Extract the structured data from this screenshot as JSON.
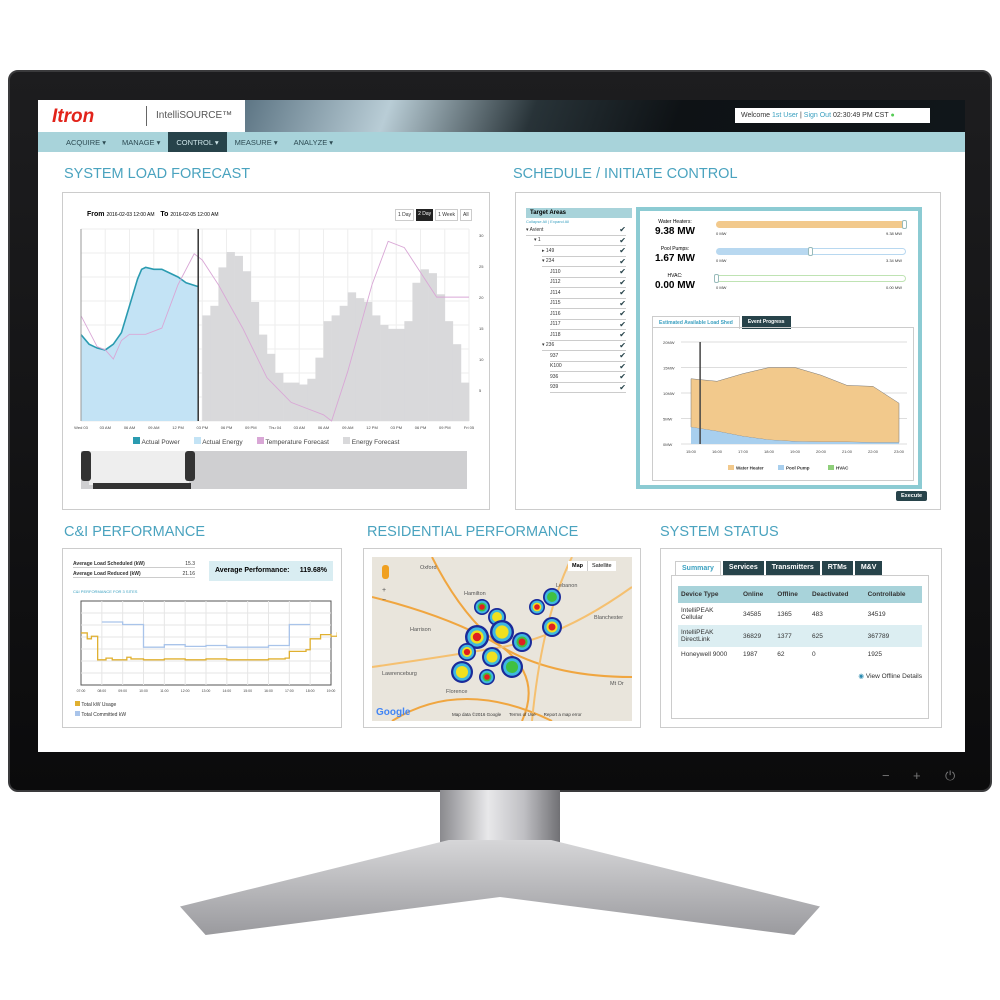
{
  "app": {
    "logo": "Itron",
    "product": "IntelliSOURCE™",
    "welcome": "Welcome",
    "user": "1st User",
    "sign_out": "Sign Out",
    "time": "02:30:49 PM CST",
    "status_dot": "●"
  },
  "nav": [
    {
      "label": "ACQUIRE ▾"
    },
    {
      "label": "MANAGE ▾"
    },
    {
      "label": "CONTROL ▾",
      "active": true
    },
    {
      "label": "MEASURE ▾"
    },
    {
      "label": "ANALYZE ▾"
    }
  ],
  "load_forecast": {
    "title": "SYSTEM LOAD FORECAST",
    "from_label": "From",
    "from": "2016-02-03 12:00 AM",
    "to_label": "To",
    "to": "2016-02-05 12:00 AM",
    "ranges": [
      "1 Day",
      "2 Day",
      "1 Week",
      "All"
    ],
    "active_range": "2 Day",
    "legend": [
      "Actual Power",
      "Actual Energy",
      "Temperature Forecast",
      "Energy Forecast"
    ],
    "colors": {
      "actual_power": "#2a9bb0",
      "actual_energy": "#c3e3f5",
      "temperature": "#d9a7d6",
      "energy_forecast": "#d9d9db"
    }
  },
  "schedule": {
    "title": "SCHEDULE / INITIATE CONTROL",
    "target_areas": "Target Areas",
    "collapse": "Collapse All | Expand All",
    "tree": [
      {
        "label": "▾ Avient",
        "lvl": 0
      },
      {
        "label": "▾ 1",
        "lvl": 1
      },
      {
        "label": "▸ 149",
        "lvl": 2
      },
      {
        "label": "▾ 234",
        "lvl": 2
      },
      {
        "label": "J110",
        "lvl": 3
      },
      {
        "label": "J112",
        "lvl": 3
      },
      {
        "label": "J114",
        "lvl": 3
      },
      {
        "label": "J115",
        "lvl": 3
      },
      {
        "label": "J116",
        "lvl": 3
      },
      {
        "label": "J117",
        "lvl": 3
      },
      {
        "label": "J118",
        "lvl": 3
      },
      {
        "label": "▾ 236",
        "lvl": 2
      },
      {
        "label": "937",
        "lvl": 3
      },
      {
        "label": "K100",
        "lvl": 3
      },
      {
        "label": "936",
        "lvl": 3
      },
      {
        "label": "939",
        "lvl": 3
      }
    ],
    "sliders": [
      {
        "label": "Water Heaters:",
        "value": "9.38 MW",
        "min": "0 MW",
        "max": "9.38 MW",
        "fraction": 1.0,
        "color": "#f2c98c"
      },
      {
        "label": "Pool Pumps:",
        "value": "1.67 MW",
        "min": "0 MW",
        "max": "3.34 MW",
        "fraction": 0.5,
        "color": "#b8d8f0"
      },
      {
        "label": "HVAC:",
        "value": "0.00 MW",
        "min": "0 MW",
        "max": "0.00 MW",
        "fraction": 0,
        "color": "#bfe3b3"
      }
    ],
    "tabs": [
      "Estimated Available Load Shed",
      "Event Progress"
    ],
    "execute": "Execute"
  },
  "ci": {
    "title": "C&I PERFORMANCE",
    "rows": [
      {
        "label": "Average Load Scheduled (kW)",
        "value": "15.3"
      },
      {
        "label": "Average Load Reduced (kW)",
        "value": "21.16"
      }
    ],
    "avg_label": "Average Performance:",
    "avg_value": "119.68%",
    "chart_title": "C&I PERFORMANCE FOR 3 SITES",
    "legend": [
      "Total kW Usage",
      "Total Committed kW"
    ]
  },
  "residential": {
    "title": "RESIDENTIAL PERFORMANCE",
    "map_btn": "Map",
    "sat_btn": "Satellite",
    "zoom_in": "+",
    "zoom_out": "−",
    "places": [
      "Oxford",
      "Hamilton",
      "Lebanon",
      "Harrison",
      "Blanchester",
      "Lawrenceburg",
      "Florence",
      "Mt Or"
    ],
    "google": "Google",
    "attrib": "Map data ©2016 Google",
    "terms": "Terms of Use",
    "report": "Report a map error"
  },
  "status": {
    "title": "SYSTEM STATUS",
    "tabs": [
      "Summary",
      "Services",
      "Transmitters",
      "RTMs",
      "M&V"
    ],
    "columns": [
      "Device Type",
      "Online",
      "Offline",
      "Deactivated",
      "Controllable"
    ],
    "rows": [
      [
        "IntelliPEAK Cellular",
        "34585",
        "1365",
        "483",
        "34519"
      ],
      [
        "IntelliPEAK DirectLink",
        "36829",
        "1377",
        "625",
        "367789"
      ],
      [
        "Honeywell 9000",
        "1987",
        "62",
        "0",
        "1925"
      ]
    ],
    "link": "View Offline Details"
  },
  "monitor": {
    "buttons": [
      "−",
      "+",
      "⏻"
    ]
  },
  "chart_data": [
    {
      "id": "load_forecast",
      "type": "bar+line",
      "x_unit": "hours from 2016-02-03 12:00 AM",
      "x_ticks": [
        "Wed 03",
        "03 AM",
        "06 AM",
        "09 AM",
        "12 PM",
        "03 PM",
        "06 PM",
        "09 PM",
        "Thu 04",
        "03 AM",
        "06 AM",
        "09 AM",
        "12 PM",
        "03 PM",
        "06 PM",
        "09 PM",
        "Fri 05"
      ],
      "y2_ticks": [
        "30",
        "25",
        "20",
        "15",
        "10",
        "5"
      ],
      "y2_range": [
        0,
        31
      ],
      "now_hour": 14.5,
      "actual_power": [
        [
          0,
          0.45
        ],
        [
          1,
          0.4
        ],
        [
          2,
          0.38
        ],
        [
          3,
          0.37
        ],
        [
          4,
          0.4
        ],
        [
          5,
          0.46
        ],
        [
          6,
          0.6
        ],
        [
          7,
          0.74
        ],
        [
          7.5,
          0.79
        ],
        [
          8,
          0.8
        ],
        [
          9,
          0.79
        ],
        [
          10,
          0.79
        ],
        [
          11,
          0.77
        ],
        [
          12,
          0.75
        ],
        [
          13,
          0.72
        ],
        [
          14.5,
          0.7
        ]
      ],
      "energy_forecast": [
        [
          15,
          0.55
        ],
        [
          16,
          0.6
        ],
        [
          17,
          0.8
        ],
        [
          18,
          0.88
        ],
        [
          19,
          0.86
        ],
        [
          20,
          0.78
        ],
        [
          21,
          0.62
        ],
        [
          22,
          0.45
        ],
        [
          23,
          0.35
        ],
        [
          24,
          0.25
        ],
        [
          25,
          0.2
        ],
        [
          26,
          0.2
        ],
        [
          27,
          0.19
        ],
        [
          28,
          0.22
        ],
        [
          29,
          0.33
        ],
        [
          30,
          0.52
        ],
        [
          31,
          0.55
        ],
        [
          32,
          0.6
        ],
        [
          33,
          0.67
        ],
        [
          34,
          0.64
        ],
        [
          35,
          0.62
        ],
        [
          36,
          0.55
        ],
        [
          37,
          0.5
        ],
        [
          38,
          0.48
        ],
        [
          39,
          0.48
        ],
        [
          40,
          0.52
        ],
        [
          41,
          0.72
        ],
        [
          42,
          0.79
        ],
        [
          43,
          0.77
        ],
        [
          44,
          0.66
        ],
        [
          45,
          0.52
        ],
        [
          46,
          0.4
        ],
        [
          47,
          0.2
        ]
      ],
      "temperature": [
        [
          0,
          17
        ],
        [
          2,
          12
        ],
        [
          3,
          11.5
        ],
        [
          4,
          10
        ],
        [
          5,
          13
        ],
        [
          6,
          14
        ],
        [
          8,
          14
        ],
        [
          10,
          15
        ],
        [
          12,
          22
        ],
        [
          14,
          27
        ],
        [
          15,
          26
        ],
        [
          17,
          22
        ],
        [
          20,
          15
        ],
        [
          23,
          7
        ],
        [
          26,
          3
        ],
        [
          28,
          2
        ],
        [
          30,
          1
        ],
        [
          31,
          0
        ],
        [
          33,
          8
        ],
        [
          36,
          22
        ],
        [
          38,
          29
        ],
        [
          40,
          28
        ],
        [
          42,
          24
        ],
        [
          44,
          20
        ],
        [
          48,
          20
        ]
      ]
    },
    {
      "id": "load_shed",
      "type": "stacked-area",
      "categories": [
        "15:00",
        "16:00",
        "17:00",
        "18:00",
        "19:00",
        "20:00",
        "21:00",
        "22:00",
        "23:00"
      ],
      "y_ticks": [
        "20MW",
        "15MW",
        "10MW",
        "5MW",
        "0MW"
      ],
      "ylim": [
        0,
        20
      ],
      "series": [
        {
          "name": "Pool Pump",
          "values": [
            3.3,
            2.5,
            1.5,
            0.8,
            0.5,
            0.4,
            0.4,
            0.3,
            0.3
          ],
          "color": "#a8cfee"
        },
        {
          "name": "Water Heater",
          "values": [
            9.5,
            9.8,
            12.3,
            14.2,
            14.5,
            13.1,
            11.1,
            11.0,
            7.7
          ],
          "color": "#f2c98c"
        },
        {
          "name": "HVAC",
          "values": [
            0,
            0,
            0,
            0,
            0,
            0,
            0,
            0,
            0
          ],
          "color": "#8fcf7a"
        }
      ],
      "now_index": 0.35
    },
    {
      "id": "ci_performance",
      "type": "step-line",
      "x_ticks": [
        "07:00",
        "08:00",
        "09:00",
        "10:00",
        "11:00",
        "12:00",
        "13:00",
        "14:00",
        "15:00",
        "16:00",
        "17:00",
        "18:00",
        "19:00"
      ],
      "series": [
        {
          "name": "Total kW Usage",
          "color": "#e0b030",
          "values": [
            [
              0,
              0.62
            ],
            [
              0.3,
              0.55
            ],
            [
              0.5,
              0.58
            ],
            [
              0.8,
              0.3
            ],
            [
              1.2,
              0.32
            ],
            [
              1.5,
              0.3
            ],
            [
              2.2,
              0.33
            ],
            [
              2.4,
              0.31
            ],
            [
              3,
              0.3
            ],
            [
              4,
              0.31
            ],
            [
              5,
              0.3
            ],
            [
              6,
              0.31
            ],
            [
              7,
              0.3
            ],
            [
              8,
              0.3
            ],
            [
              9,
              0.31
            ],
            [
              9.8,
              0.32
            ],
            [
              10,
              0.4
            ],
            [
              10.8,
              0.42
            ],
            [
              11,
              0.55
            ],
            [
              11.5,
              0.6
            ],
            [
              12,
              0.58
            ],
            [
              12.3,
              0.62
            ],
            [
              13,
              0.6
            ]
          ]
        },
        {
          "name": "Total Committed kW",
          "color": "#a9c4ea",
          "values": [
            [
              1,
              0.75
            ],
            [
              2,
              0.72
            ],
            [
              3,
              0.45
            ],
            [
              4,
              0.48
            ],
            [
              5,
              0.46
            ],
            [
              6,
              0.47
            ],
            [
              7,
              0.45
            ],
            [
              8,
              0.45
            ],
            [
              9,
              0.47
            ],
            [
              10,
              0.47
            ],
            [
              10,
              0.72
            ],
            [
              11,
              0.72
            ]
          ]
        }
      ]
    }
  ]
}
